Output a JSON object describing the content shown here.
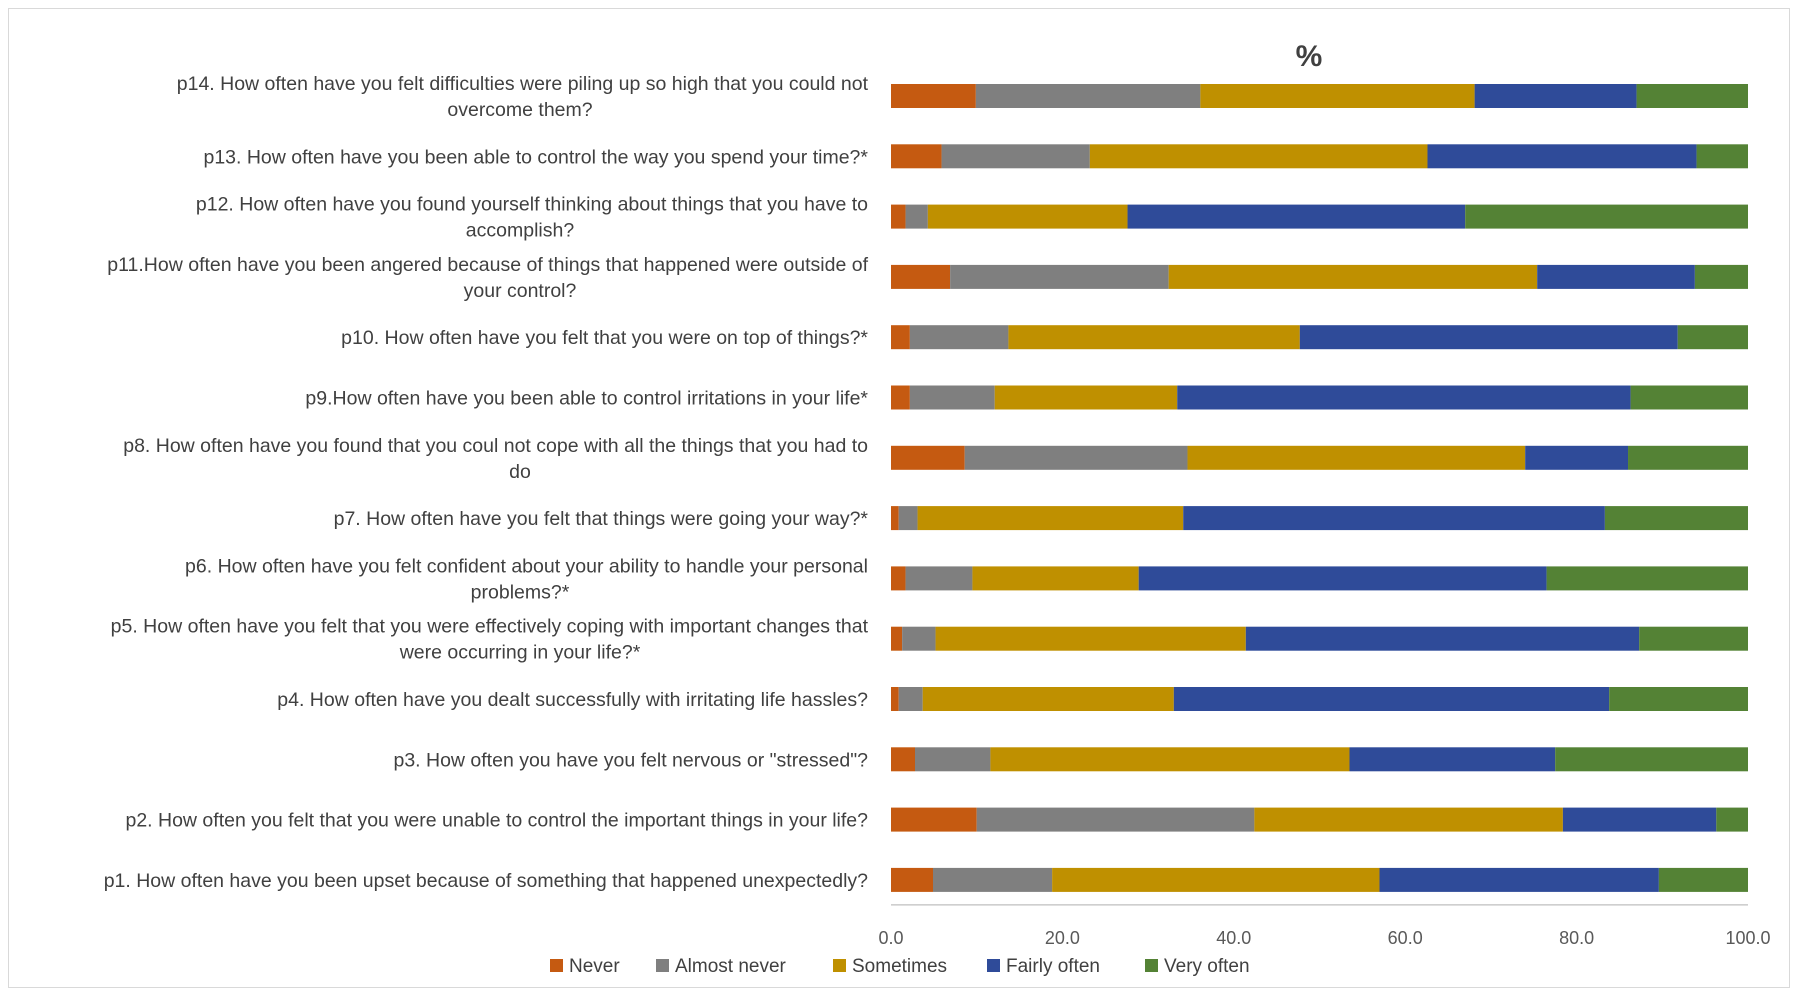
{
  "chart_data": {
    "type": "bar",
    "orientation": "horizontal",
    "stacked": true,
    "title": "%",
    "xlim": [
      0,
      100
    ],
    "x_ticks": [
      "0.0",
      "20.0",
      "40.0",
      "60.0",
      "80.0",
      "100.0"
    ],
    "legend_position": "bottom",
    "categories": [
      "p14. How often have you felt difficulties were piling up so high that you could not overcome them?",
      "p13. How often have you been able to control the way you spend your time?*",
      "p12. How often have you found yourself thinking about things that you have to accomplish?",
      "p11.How often have you been angered because of things that happened were outside of your control?",
      "p10. How often have you felt that you were on top of things?*",
      "p9.How often have you been able to control irritations in your life*",
      "p8. How often have you found that you coul not cope with all the things that you had to do",
      "p7. How often have you felt that things were going your way?*",
      "p6. How often have you felt confident about your ability to handle your personal problems?*",
      "p5. How often have you felt that you were effectively coping with important changes that were occurring in your life?*",
      "p4. How often have you dealt successfully with irritating life hassles?",
      "p3. How often you have you felt nervous or \"stressed\"?",
      "p2. How often you felt that you were unable to control the important things in your life?",
      "p1. How often have you been upset because of something that happened unexpectedly?"
    ],
    "category_lines": [
      [
        "p14. How often have you felt difficulties were piling up so high that you could not",
        "overcome them?"
      ],
      [
        "p13. How often have you been able to control the way you spend your time?*"
      ],
      [
        "p12. How often have you found yourself thinking about things that you have to",
        "accomplish?"
      ],
      [
        "p11.How often have you been angered because of things that happened were outside of",
        "your control?"
      ],
      [
        "p10. How often have you felt that you were on top of things?*"
      ],
      [
        "p9.How often have you been able to control irritations in your life*"
      ],
      [
        "p8. How often have you found that you coul not cope with all the things that you had to",
        "do"
      ],
      [
        "p7. How often have you felt that things were going your way?*"
      ],
      [
        "p6. How often have you felt confident about your ability to handle your personal",
        "problems?*"
      ],
      [
        "p5. How often have you felt that you were effectively coping with important changes that",
        "were occurring in your life?*"
      ],
      [
        "p4. How often have you dealt successfully with irritating life hassles?"
      ],
      [
        "p3. How often you have you felt nervous or \"stressed\"?"
      ],
      [
        "p2. How often you felt that you were unable to control the important things in your life?"
      ],
      [
        "p1. How often have you been upset because of something that happened unexpectedly?"
      ]
    ],
    "series": [
      {
        "name": "Never",
        "color": "#c55a11",
        "values": [
          9.9,
          5.9,
          1.7,
          6.9,
          2.2,
          2.2,
          8.6,
          0.9,
          1.7,
          1.3,
          0.9,
          2.8,
          10.0,
          4.9
        ]
      },
      {
        "name": "Almost never",
        "color": "#7f7f7f",
        "values": [
          26.2,
          17.3,
          2.6,
          25.5,
          11.5,
          9.9,
          26.0,
          2.2,
          7.8,
          3.9,
          2.8,
          8.8,
          32.4,
          13.9
        ]
      },
      {
        "name": "Sometimes",
        "color": "#bf9000",
        "values": [
          32.0,
          39.4,
          23.3,
          43.0,
          34.0,
          21.3,
          39.4,
          31.0,
          19.4,
          36.2,
          29.3,
          41.9,
          36.0,
          38.2
        ]
      },
      {
        "name": "Fairly often",
        "color": "#2f4b99",
        "values": [
          18.9,
          31.4,
          39.4,
          18.4,
          44.1,
          52.9,
          12.0,
          49.2,
          47.6,
          45.9,
          50.8,
          24.0,
          17.9,
          32.6
        ]
      },
      {
        "name": "Very often",
        "color": "#548235",
        "values": [
          13.0,
          6.0,
          33.0,
          6.2,
          8.2,
          13.7,
          14.0,
          16.7,
          23.5,
          12.7,
          16.2,
          22.5,
          3.7,
          10.4
        ]
      }
    ]
  }
}
